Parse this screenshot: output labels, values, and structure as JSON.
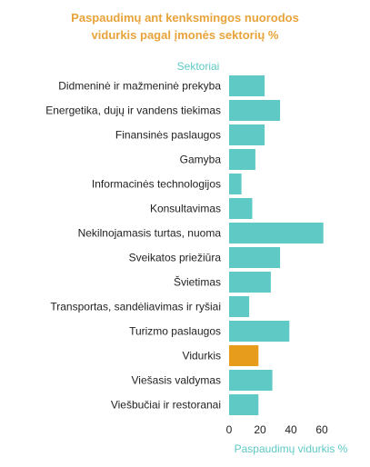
{
  "chart_data": {
    "type": "bar",
    "orientation": "horizontal",
    "title_lines": [
      "Paspaudimų ant kenksmingos nuorodos",
      "vidurkis pagal įmonės sektorių %"
    ],
    "ylabel": "Sektoriai",
    "xlabel": "Paspaudimų vidurkis %",
    "xlim": [
      0,
      60
    ],
    "xticks": [
      0,
      20,
      40,
      60
    ],
    "grid": false,
    "legend": "none",
    "categories": [
      "Didmeninė ir mažmeninė prekyba",
      "Energetika, dujų ir vandens tiekimas",
      "Finansinės paslaugos",
      "Gamyba",
      "Informacinės technologijos",
      "Konsultavimas",
      "Nekilnojamasis turtas, nuoma",
      "Sveikatos priežiūra",
      "Švietimas",
      "Transportas, sandėliavimas ir ryšiai",
      "Turizmo paslaugos",
      "Vidurkis",
      "Viešasis valdymas",
      "Viešbučiai ir restoranai"
    ],
    "values": [
      23,
      33,
      23,
      17,
      8,
      15,
      61,
      33,
      27,
      13,
      39,
      19,
      28,
      19
    ],
    "highlight_category": "Vidurkis",
    "colors": {
      "bar": "#5ec9c5",
      "highlight": "#e89c1b",
      "axis_label": "#5ec9c5",
      "title": "#e8a33a",
      "text": "#222222"
    }
  }
}
